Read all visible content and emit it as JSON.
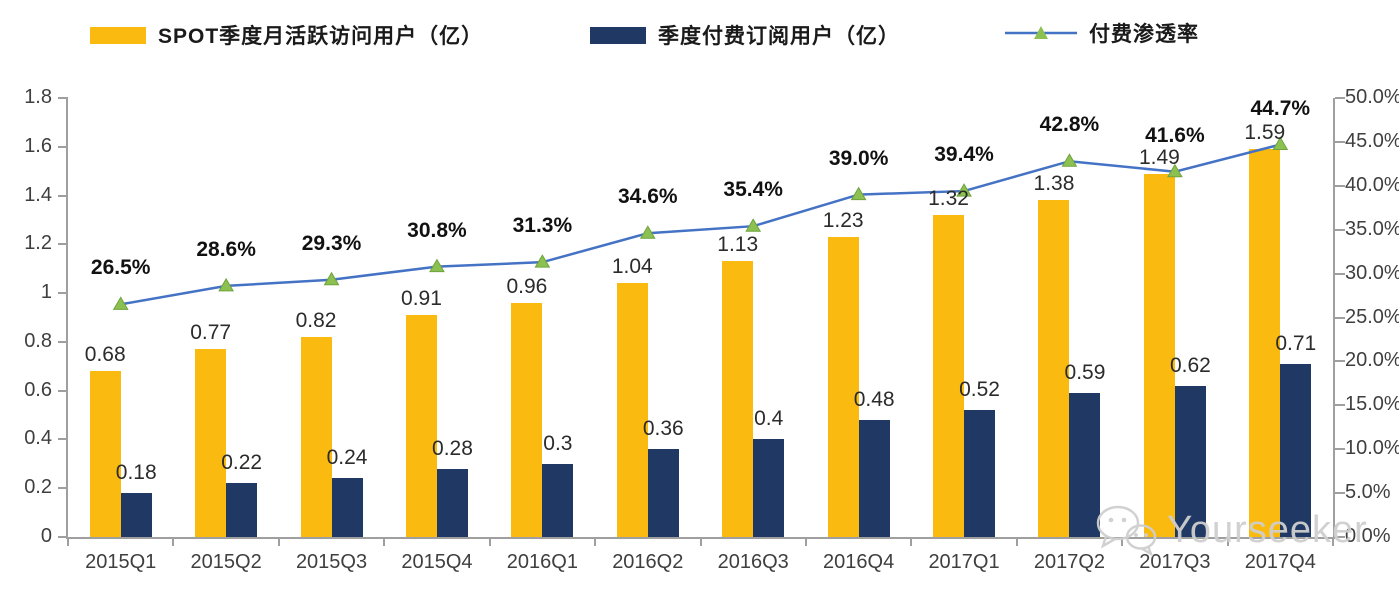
{
  "legend": {
    "mau_label": "SPOT季度月活跃访问用户（亿）",
    "paid_label": "季度付费订阅用户（亿）",
    "penetration_label": "付费渗透率"
  },
  "colors": {
    "mau_bar": "#FBBA0F",
    "paid_bar": "#1F3864",
    "line": "#4472C4",
    "marker": "#8CC152",
    "marker_edge": "#6FA33C",
    "axis": "#9F9F9F",
    "tick_text": "#3F3F3F",
    "watermark": "#CFCFCF"
  },
  "watermark": {
    "text": "Yourseeker",
    "icon": "wechat-icon"
  },
  "chart_data": {
    "type": "bar",
    "title": "",
    "categories": [
      "2015Q1",
      "2015Q2",
      "2015Q3",
      "2015Q4",
      "2016Q1",
      "2016Q2",
      "2016Q3",
      "2016Q4",
      "2017Q1",
      "2017Q2",
      "2017Q3",
      "2017Q4"
    ],
    "series": [
      {
        "name": "SPOT季度月活跃访问用户（亿）",
        "kind": "bar",
        "axis": "left",
        "color": "#FBBA0F",
        "values": [
          0.68,
          0.77,
          0.82,
          0.91,
          0.96,
          1.04,
          1.13,
          1.23,
          1.32,
          1.38,
          1.49,
          1.59
        ],
        "labels": [
          "0.68",
          "0.77",
          "0.82",
          "0.91",
          "0.96",
          "1.04",
          "1.13",
          "1.23",
          "1.32",
          "1.38",
          "1.49",
          "1.59"
        ]
      },
      {
        "name": "季度付费订阅用户（亿）",
        "kind": "bar",
        "axis": "left",
        "color": "#1F3864",
        "values": [
          0.18,
          0.22,
          0.24,
          0.28,
          0.3,
          0.36,
          0.4,
          0.48,
          0.52,
          0.59,
          0.62,
          0.71
        ],
        "labels": [
          "0.18",
          "0.22",
          "0.24",
          "0.28",
          "0.3",
          "0.36",
          "0.4",
          "0.48",
          "0.52",
          "0.59",
          "0.62",
          "0.71"
        ]
      },
      {
        "name": "付费渗透率",
        "kind": "line",
        "axis": "right",
        "color": "#4472C4",
        "marker": "triangle",
        "marker_color": "#8CC152",
        "values": [
          26.5,
          28.6,
          29.3,
          30.8,
          31.3,
          34.6,
          35.4,
          39.0,
          39.4,
          42.8,
          41.6,
          44.7
        ],
        "labels": [
          "26.5%",
          "28.6%",
          "29.3%",
          "30.8%",
          "31.3%",
          "34.6%",
          "35.4%",
          "39.0%",
          "39.4%",
          "42.8%",
          "41.6%",
          "44.7%"
        ]
      }
    ],
    "left_axis": {
      "min": 0,
      "max": 1.8,
      "step": 0.2,
      "tick_labels": [
        "0",
        "0.2",
        "0.4",
        "0.6",
        "0.8",
        "1",
        "1.2",
        "1.4",
        "1.6",
        "1.8"
      ]
    },
    "right_axis": {
      "min": 0,
      "max": 50,
      "step": 5,
      "tick_labels": [
        "0.0%",
        "5.0%",
        "10.0%",
        "15.0%",
        "20.0%",
        "25.0%",
        "30.0%",
        "35.0%",
        "40.0%",
        "45.0%",
        "50.0%"
      ]
    },
    "legend_position": "top",
    "grid": false
  }
}
